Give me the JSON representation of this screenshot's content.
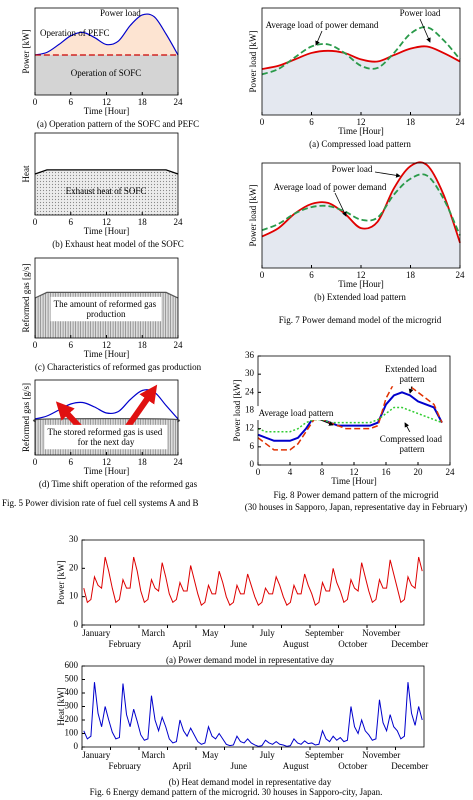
{
  "figure_captions": {
    "fig5": "Fig. 5  Power division rate of fuel cell systems A and B",
    "fig7": "Fig. 7  Power demand model of the microgrid",
    "fig8": [
      "Fig. 8  Power demand pattern of the microgrid",
      "(30 houses in Sapporo, Japan, representative day in February)"
    ],
    "fig6": "Fig. 6  Energy demand pattern of the microgrid. 30 houses in Sapporo-city, Japan."
  },
  "chart_data": [
    {
      "type": "area",
      "caption": "(a) Operation pattern of the SOFC and PEFC",
      "xlabel": "Time [Hour]",
      "ylabel": "Power [kW]",
      "xlim": [
        0,
        24
      ],
      "xticks": [
        0,
        6,
        12,
        18,
        24
      ],
      "ylim": [
        0,
        10
      ],
      "smooth": true,
      "annotations": [
        "Operation of PEFC"
      ],
      "series": [
        {
          "name": "Power load",
          "color": "#0000cc",
          "fill": "#fde4d2",
          "x": [
            0,
            2,
            4,
            6,
            8,
            10,
            12,
            14,
            16,
            18,
            20,
            22,
            24
          ],
          "values": [
            4.6,
            4.9,
            5.8,
            6.8,
            7.2,
            6.6,
            5.8,
            6.2,
            8.0,
            9.2,
            9.0,
            7.0,
            4.6
          ]
        },
        {
          "name": "Operation of SOFC",
          "color": "#cc0000",
          "style": "dashed",
          "fill": "#d4d4d4",
          "x": [
            0,
            24
          ],
          "values": [
            4.6,
            4.6
          ]
        }
      ]
    },
    {
      "type": "area",
      "caption": "(b) Exhaust heat model of the SOFC",
      "xlabel": "Time [Hour]",
      "ylabel": "Heat",
      "xlim": [
        0,
        24
      ],
      "xticks": [
        0,
        6,
        12,
        18,
        24
      ],
      "ylim": [
        0,
        10
      ],
      "annotations": [
        "Exhaust heat of SOFC"
      ],
      "series": [
        {
          "color": "#000000",
          "fill_pattern": "dots",
          "x": [
            0,
            2,
            22,
            24
          ],
          "values": [
            5.0,
            5.5,
            5.5,
            5.0
          ]
        }
      ]
    },
    {
      "type": "area",
      "caption": "(c) Characteristics of reformed gas production",
      "xlabel": "Time [Hour]",
      "ylabel": "Reformed gas [g/s]",
      "xlim": [
        0,
        24
      ],
      "xticks": [
        0,
        6,
        12,
        18,
        24
      ],
      "ylim": [
        0,
        10
      ],
      "annotations": [
        "The amount of reformed gas production"
      ],
      "series": [
        {
          "color": "#555555",
          "fill_pattern": "hatch",
          "x": [
            0,
            2,
            22,
            24
          ],
          "values": [
            5.0,
            5.7,
            5.7,
            5.0
          ]
        }
      ]
    },
    {
      "type": "area",
      "caption": "(d) Time shift operation of the reformed gas",
      "xlabel": "Time [Hour]",
      "ylabel": "Reformed gas [g/s]",
      "xlim": [
        0,
        24
      ],
      "xticks": [
        0,
        6,
        12,
        18,
        24
      ],
      "ylim": [
        0,
        10
      ],
      "smooth": true,
      "annotations": [
        "The stored reformed gas is used for the next day"
      ],
      "series": [
        {
          "color": "#555555",
          "fill_pattern": "hatch",
          "x": [
            0,
            2,
            22,
            24
          ],
          "values": [
            4.4,
            4.8,
            4.8,
            4.4
          ]
        },
        {
          "color": "#0000cc",
          "x": [
            0,
            2,
            4,
            6,
            8,
            10,
            12,
            14,
            16,
            18,
            20,
            22,
            24
          ],
          "values": [
            4.8,
            5.2,
            6.0,
            6.8,
            7.0,
            6.4,
            5.6,
            5.8,
            7.4,
            8.6,
            8.4,
            6.6,
            4.8
          ]
        }
      ]
    },
    {
      "type": "line",
      "caption": "(a) Compressed load pattern",
      "xlabel": "Time [Hour]",
      "ylabel": "Power load [kW]",
      "xlim": [
        0,
        24
      ],
      "xticks": [
        0,
        6,
        12,
        18,
        24
      ],
      "ylim": [
        0,
        10
      ],
      "smooth": true,
      "x": [
        0,
        2,
        4,
        6,
        8,
        10,
        12,
        14,
        16,
        18,
        20,
        22,
        24
      ],
      "series": [
        {
          "name": "Power load",
          "color": "#e00000",
          "fill": "#e4e8f0",
          "width": 1.8,
          "values": [
            4.3,
            4.6,
            5.2,
            5.8,
            6.0,
            5.8,
            5.2,
            5.0,
            5.6,
            6.2,
            6.4,
            5.8,
            5.0
          ]
        },
        {
          "name": "Average load of power demand",
          "color": "#2a9a4a",
          "style": "dashed",
          "width": 1.8,
          "values": [
            3.8,
            4.3,
            5.4,
            6.4,
            6.6,
            5.8,
            4.6,
            4.4,
            5.8,
            7.6,
            8.2,
            7.0,
            5.2
          ]
        }
      ]
    },
    {
      "type": "line",
      "caption": "(b) Extended load pattern",
      "xlabel": "Time [Hour]",
      "ylabel": "Power load [kW]",
      "xlim": [
        0,
        24
      ],
      "xticks": [
        0,
        6,
        12,
        18,
        24
      ],
      "ylim": [
        0,
        10
      ],
      "smooth": true,
      "x": [
        0,
        2,
        4,
        6,
        8,
        10,
        12,
        14,
        16,
        18,
        20,
        22,
        24
      ],
      "series": [
        {
          "name": "Power load",
          "color": "#e00000",
          "fill": "#e4e8f0",
          "width": 1.8,
          "values": [
            3.0,
            3.8,
            5.2,
            6.1,
            6.2,
            5.2,
            3.8,
            4.4,
            7.6,
            9.7,
            9.8,
            7.0,
            2.4
          ]
        },
        {
          "name": "Average load of power demand",
          "color": "#2a9a4a",
          "style": "dashed",
          "width": 1.8,
          "values": [
            3.6,
            4.2,
            5.2,
            5.8,
            5.9,
            5.4,
            4.6,
            4.8,
            7.0,
            8.5,
            8.8,
            6.6,
            3.1
          ]
        }
      ]
    },
    {
      "type": "line",
      "xlabel": "Time [Hour]",
      "ylabel": "Power load [kW]",
      "xlim": [
        0,
        24
      ],
      "xticks": [
        0,
        4,
        8,
        12,
        16,
        20,
        24
      ],
      "ylim": [
        0,
        36
      ],
      "yticks": [
        0,
        6,
        12,
        18,
        24,
        30,
        36
      ],
      "x": [
        0,
        1,
        2,
        3,
        4,
        5,
        6,
        7,
        8,
        9,
        10,
        11,
        12,
        13,
        14,
        15,
        16,
        17,
        18,
        19,
        20,
        21,
        22,
        23
      ],
      "series": [
        {
          "name": "Average load pattern",
          "color": "#0000cc",
          "width": 2,
          "values": [
            10,
            9,
            8,
            8,
            8,
            9,
            12,
            16,
            15,
            14,
            13,
            13,
            13,
            13,
            13,
            14,
            20,
            23,
            24,
            23,
            21,
            20,
            19,
            14
          ]
        },
        {
          "name": "Extended load pattern",
          "color": "#e03000",
          "style": "dashed",
          "width": 1.5,
          "values": [
            9,
            7,
            5,
            5,
            5,
            7,
            11,
            15,
            15,
            14,
            13,
            12,
            12,
            12,
            12,
            13,
            22,
            27,
            28,
            26,
            24,
            22,
            20,
            14
          ]
        },
        {
          "name": "Compressed load pattern",
          "color": "#33cc33",
          "style": "dotted",
          "width": 1.5,
          "values": [
            12,
            11,
            11,
            11,
            11,
            12,
            14,
            15,
            15,
            14,
            14,
            14,
            14,
            14,
            14,
            15,
            17,
            19,
            19,
            18,
            17,
            16,
            15,
            14
          ]
        }
      ]
    },
    {
      "type": "line",
      "caption": "(a) Power demand model in representative day",
      "ylabel": "Power [kW]",
      "ylim": [
        0,
        30
      ],
      "yticks": [
        0,
        10,
        20,
        30
      ],
      "categories": [
        "January",
        "February",
        "March",
        "April",
        "May",
        "June",
        "July",
        "August",
        "September",
        "October",
        "November",
        "December"
      ],
      "series": [
        {
          "color": "#dd0000",
          "width": 1,
          "values": [
            [
              13,
              8,
              9,
              17,
              14,
              13,
              24,
              19
            ],
            [
              13,
              8,
              9,
              16,
              13,
              13,
              24,
              19
            ],
            [
              12,
              8,
              9,
              16,
              13,
              12,
              22,
              17
            ],
            [
              11,
              8,
              9,
              15,
              12,
              12,
              21,
              16
            ],
            [
              11,
              7,
              8,
              14,
              11,
              11,
              19,
              15
            ],
            [
              10,
              7,
              8,
              14,
              11,
              11,
              18,
              14
            ],
            [
              10,
              7,
              8,
              13,
              11,
              11,
              17,
              14
            ],
            [
              10,
              7,
              8,
              14,
              11,
              11,
              18,
              14
            ],
            [
              11,
              7,
              8,
              15,
              12,
              12,
              20,
              15
            ],
            [
              12,
              8,
              9,
              16,
              13,
              12,
              22,
              17
            ],
            [
              12,
              8,
              9,
              16,
              13,
              13,
              23,
              18
            ],
            [
              13,
              8,
              9,
              17,
              14,
              13,
              24,
              19
            ]
          ]
        }
      ]
    },
    {
      "type": "line",
      "caption": "(b) Heat demand model in representative day",
      "ylabel": "Heat [kW]",
      "ylim": [
        0,
        600
      ],
      "yticks": [
        0,
        100,
        200,
        300,
        400,
        500,
        600
      ],
      "categories": [
        "January",
        "February",
        "March",
        "April",
        "May",
        "June",
        "July",
        "August",
        "September",
        "October",
        "November",
        "December"
      ],
      "series": [
        {
          "color": "#0000cc",
          "width": 1,
          "values": [
            [
              120,
              60,
              80,
              480,
              250,
              150,
              300,
              200
            ],
            [
              110,
              60,
              70,
              470,
              240,
              150,
              280,
              190
            ],
            [
              90,
              50,
              60,
              380,
              200,
              120,
              220,
              150
            ],
            [
              60,
              30,
              40,
              200,
              120,
              80,
              140,
              90
            ],
            [
              40,
              20,
              30,
              150,
              80,
              60,
              100,
              60
            ],
            [
              20,
              10,
              15,
              80,
              40,
              30,
              60,
              30
            ],
            [
              15,
              5,
              10,
              50,
              30,
              20,
              40,
              20
            ],
            [
              15,
              5,
              10,
              60,
              30,
              20,
              45,
              25
            ],
            [
              30,
              15,
              20,
              120,
              60,
              40,
              80,
              50
            ],
            [
              70,
              40,
              50,
              300,
              150,
              100,
              200,
              120
            ],
            [
              90,
              50,
              60,
              350,
              180,
              120,
              240,
              150
            ],
            [
              120,
              60,
              80,
              480,
              250,
              160,
              300,
              200
            ]
          ]
        }
      ]
    }
  ]
}
